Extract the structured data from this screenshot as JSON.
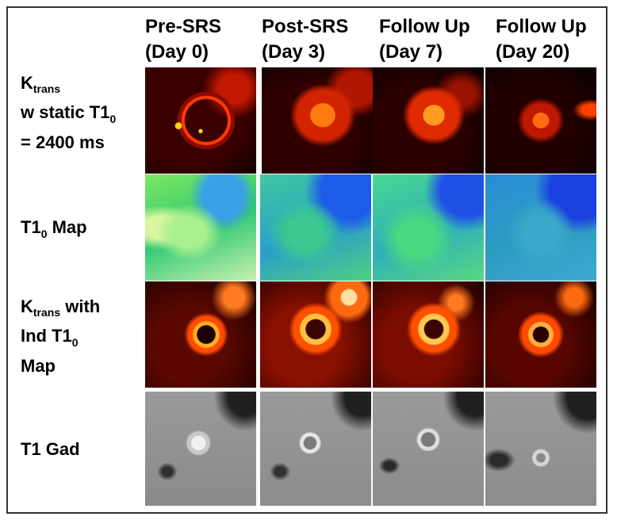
{
  "columns": [
    {
      "line1": "Pre-SRS",
      "line2": "(Day 0)"
    },
    {
      "line1": "Post-SRS",
      "line2": "(Day 3)"
    },
    {
      "line1": "Follow Up",
      "line2": "(Day 7)"
    },
    {
      "line1": "Follow Up",
      "line2": "(Day 20)"
    }
  ],
  "rows": [
    {
      "k": "K",
      "ksub": "trans",
      "line2": "w static T1",
      "line2sub": "0",
      "line3": "= 2400 ms"
    },
    {
      "t": "T1",
      "tsub": "0",
      "rest": " Map"
    },
    {
      "k": "K",
      "ksub": "trans",
      "with": " with",
      "line2": "Ind T1",
      "line2sub": "0",
      "line3": "Map"
    },
    {
      "label": "T1 Gad"
    }
  ]
}
